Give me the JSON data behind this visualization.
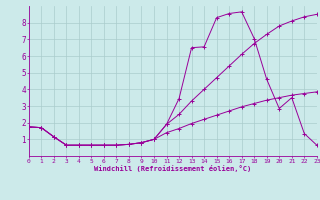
{
  "xlabel": "Windchill (Refroidissement éolien,°C)",
  "xlim": [
    0,
    23
  ],
  "ylim": [
    0,
    9
  ],
  "xticks": [
    0,
    1,
    2,
    3,
    4,
    5,
    6,
    7,
    8,
    9,
    10,
    11,
    12,
    13,
    14,
    15,
    16,
    17,
    18,
    19,
    20,
    21,
    22,
    23
  ],
  "yticks": [
    1,
    2,
    3,
    4,
    5,
    6,
    7,
    8
  ],
  "bg_color": "#cceaea",
  "line_color": "#990099",
  "grid_color": "#aacccc",
  "curve1_x": [
    0,
    1,
    2,
    3,
    4,
    5,
    6,
    7,
    8,
    9,
    10,
    11,
    12,
    13,
    14,
    15,
    16,
    17,
    18,
    19,
    20,
    21,
    22,
    23
  ],
  "curve1_y": [
    1.75,
    1.7,
    1.15,
    0.65,
    0.65,
    0.65,
    0.65,
    0.65,
    0.7,
    0.8,
    1.0,
    1.9,
    3.45,
    6.5,
    6.55,
    8.3,
    8.55,
    8.65,
    7.05,
    4.6,
    2.85,
    3.5,
    1.35,
    0.65
  ],
  "curve2_x": [
    0,
    1,
    2,
    3,
    4,
    5,
    6,
    7,
    8,
    9,
    10,
    11,
    12,
    13,
    14,
    15,
    16,
    17,
    18,
    19,
    20,
    21,
    22,
    23
  ],
  "curve2_y": [
    1.75,
    1.7,
    1.15,
    0.65,
    0.65,
    0.65,
    0.65,
    0.65,
    0.7,
    0.8,
    1.0,
    1.9,
    2.5,
    3.3,
    4.0,
    4.7,
    5.4,
    6.1,
    6.75,
    7.3,
    7.8,
    8.1,
    8.35,
    8.5
  ],
  "curve3_x": [
    0,
    1,
    2,
    3,
    4,
    5,
    6,
    7,
    8,
    9,
    10,
    11,
    12,
    13,
    14,
    15,
    16,
    17,
    18,
    19,
    20,
    21,
    22,
    23
  ],
  "curve3_y": [
    1.75,
    1.7,
    1.15,
    0.65,
    0.65,
    0.65,
    0.65,
    0.65,
    0.7,
    0.8,
    1.0,
    1.4,
    1.65,
    1.95,
    2.2,
    2.45,
    2.7,
    2.95,
    3.15,
    3.35,
    3.5,
    3.65,
    3.75,
    3.85
  ]
}
